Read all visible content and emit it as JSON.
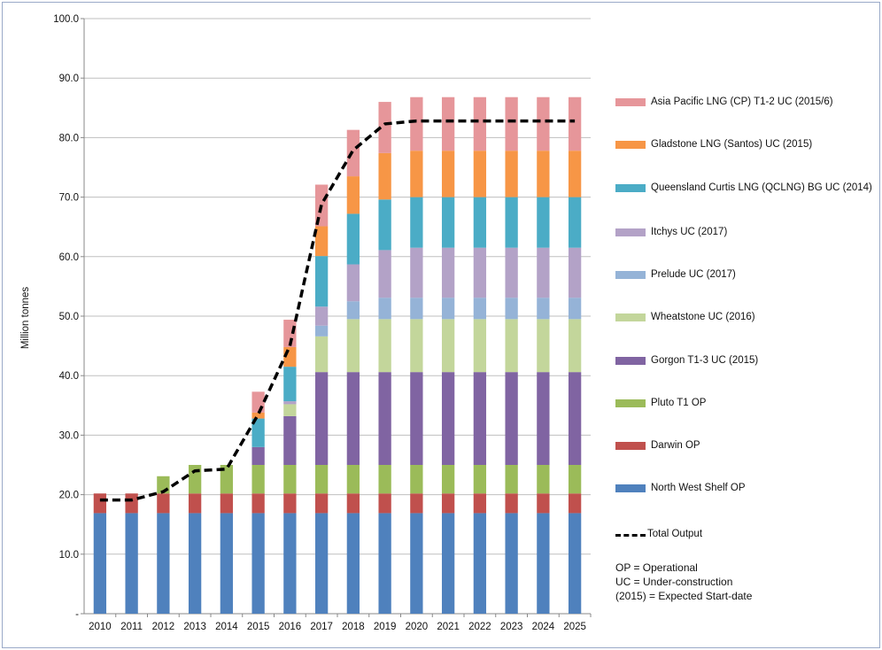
{
  "chart_data": {
    "type": "bar",
    "stacked": true,
    "ylabel": "Million tonnes",
    "ylim": [
      0,
      100
    ],
    "y_ticks": [
      "-",
      "10.0",
      "20.0",
      "30.0",
      "40.0",
      "50.0",
      "60.0",
      "70.0",
      "80.0",
      "90.0",
      "100.0"
    ],
    "categories": [
      "2010",
      "2011",
      "2012",
      "2013",
      "2014",
      "2015",
      "2016",
      "2017",
      "2018",
      "2019",
      "2020",
      "2021",
      "2022",
      "2023",
      "2024",
      "2025"
    ],
    "series": [
      {
        "name": "North West Shelf OP",
        "color": "#4f81bd",
        "values": [
          16.9,
          16.9,
          16.9,
          16.9,
          16.9,
          16.9,
          16.9,
          16.9,
          16.9,
          16.9,
          16.9,
          16.9,
          16.9,
          16.9,
          16.9,
          16.9
        ]
      },
      {
        "name": "Darwin OP",
        "color": "#c0504d",
        "values": [
          3.3,
          3.3,
          3.3,
          3.3,
          3.3,
          3.3,
          3.3,
          3.3,
          3.3,
          3.3,
          3.3,
          3.3,
          3.3,
          3.3,
          3.3,
          3.3
        ]
      },
      {
        "name": "Pluto T1 OP",
        "color": "#9bbb59",
        "values": [
          0,
          0,
          2.9,
          4.8,
          4.8,
          4.8,
          4.8,
          4.8,
          4.8,
          4.8,
          4.8,
          4.8,
          4.8,
          4.8,
          4.8,
          4.8
        ]
      },
      {
        "name": "Gorgon T1-3 UC (2015)",
        "color": "#8064a2",
        "values": [
          0,
          0,
          0,
          0,
          0,
          3.0,
          8.2,
          15.6,
          15.6,
          15.6,
          15.6,
          15.6,
          15.6,
          15.6,
          15.6,
          15.6
        ]
      },
      {
        "name": "Wheatstone UC (2016)",
        "color": "#c3d69b",
        "values": [
          0,
          0,
          0,
          0,
          0,
          0,
          2.0,
          6.0,
          8.9,
          8.9,
          8.9,
          8.9,
          8.9,
          8.9,
          8.9,
          8.9
        ]
      },
      {
        "name": "Prelude UC (2017)",
        "color": "#95b3d7",
        "values": [
          0,
          0,
          0,
          0,
          0,
          0,
          0,
          1.8,
          3.0,
          3.6,
          3.6,
          3.6,
          3.6,
          3.6,
          3.6,
          3.6
        ]
      },
      {
        "name": "Itchys UC (2017)",
        "color": "#b3a2c7",
        "values": [
          0,
          0,
          0,
          0,
          0,
          0,
          0.5,
          3.2,
          6.2,
          8.0,
          8.4,
          8.4,
          8.4,
          8.4,
          8.4,
          8.4
        ]
      },
      {
        "name": "Queensland Curtis LNG (QCLNG) BG UC (2014)",
        "color": "#4bacc6",
        "values": [
          0,
          0,
          0,
          0,
          0,
          4.8,
          5.8,
          8.5,
          8.5,
          8.5,
          8.5,
          8.5,
          8.5,
          8.5,
          8.5,
          8.5
        ]
      },
      {
        "name": "Gladstone LNG (Santos) UC (2015)",
        "color": "#f79646",
        "values": [
          0,
          0,
          0,
          0,
          0,
          1.0,
          3.3,
          5.0,
          6.3,
          7.8,
          7.8,
          7.8,
          7.8,
          7.8,
          7.8,
          7.8
        ]
      },
      {
        "name": "Asia Pacific LNG (CP) T1-2 UC (2015/6)",
        "color": "#e6969a",
        "values": [
          0,
          0,
          0,
          0,
          0,
          3.5,
          4.6,
          7.0,
          7.8,
          8.6,
          9.0,
          9.0,
          9.0,
          9.0,
          9.0,
          9.0
        ]
      }
    ],
    "line": {
      "name": "Total Output",
      "color": "#000000",
      "values": [
        19.1,
        19.1,
        20.5,
        24.0,
        24.3,
        33.5,
        45.0,
        68.8,
        77.9,
        82.3,
        82.8,
        82.8,
        82.8,
        82.8,
        82.8,
        82.8
      ]
    },
    "legend_position": "right",
    "legend_order": [
      "Asia Pacific LNG (CP) T1-2 UC (2015/6)",
      "Gladstone LNG (Santos) UC (2015)",
      "Queensland Curtis LNG (QCLNG) BG UC (2014)",
      "Itchys UC (2017)",
      "Prelude UC (2017)",
      "Wheatstone UC (2016)",
      "Gorgon T1-3 UC (2015)",
      "Pluto T1 OP",
      "Darwin OP",
      "North West Shelf OP"
    ],
    "notes": [
      "OP = Operational",
      "UC = Under-construction",
      "(2015) = Expected Start-date"
    ]
  }
}
